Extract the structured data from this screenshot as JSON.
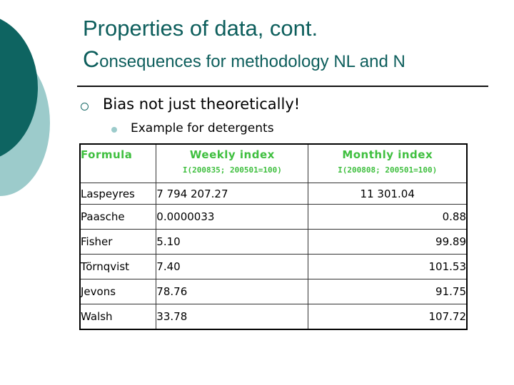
{
  "slide": {
    "title_line1": "Properties of data, cont.",
    "title_line2_cap": "C",
    "title_line2_rest": "onsequences for methodology NL and N",
    "bullets": [
      {
        "level": 1,
        "icon": "hollow-circle-bullet",
        "text": "Bias not just theoretically!"
      },
      {
        "level": 2,
        "icon": "filled-dot-bullet",
        "text": "Example for detergents"
      }
    ],
    "colors": {
      "title": "#0d5e5c",
      "header_text": "#3fbf3f",
      "deco_dark": "#0e6461",
      "deco_light": "#9ccbcb"
    }
  },
  "table": {
    "headers": {
      "formula": "Formula",
      "weekly": "Weekly index",
      "weekly_sub": "I(200835; 200501=100)",
      "monthly": "Monthly index",
      "monthly_sub": "I(200808; 200501=100)"
    },
    "rows": [
      {
        "formula": "Laspeyres",
        "weekly": "7 794 207.27",
        "monthly": "11 301.04"
      },
      {
        "formula": "Paasche",
        "weekly": "0.0000033",
        "monthly": "0.88"
      },
      {
        "formula": "Fisher",
        "weekly": "5.10",
        "monthly": "99.89"
      },
      {
        "formula": "Törnqvist",
        "weekly": "7.40",
        "monthly": "101.53"
      },
      {
        "formula": "Jevons",
        "weekly": "78.76",
        "monthly": "91.75"
      },
      {
        "formula": "Walsh",
        "weekly": "33.78",
        "monthly": "107.72"
      }
    ]
  }
}
